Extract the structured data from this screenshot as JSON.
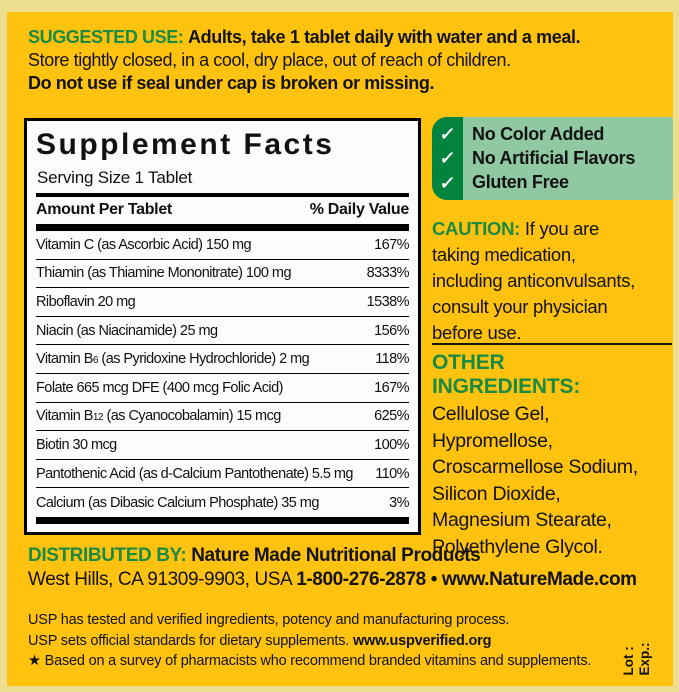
{
  "colors": {
    "background_yellow": "#FFC20E",
    "frame_pale_yellow": "#EDDE8F",
    "heading_green": "#1B8A43",
    "badge_dark_green": "#00833E",
    "badge_light_green": "#90C8A2",
    "text_black": "#131313",
    "panel_white": "#FCFCFA"
  },
  "suggested_use": {
    "label": "SUGGESTED USE:",
    "line1_rest": "Adults, take 1 tablet daily with water and a meal.",
    "line2": "Store tightly closed, in a cool, dry place, out of reach of children.",
    "line3": "Do not use if seal under cap is broken or missing."
  },
  "supplement_facts": {
    "title": "Supplement Facts",
    "serving_size": "Serving Size 1 Tablet",
    "col_left": "Amount Per Tablet",
    "col_right": "% Daily Value",
    "rows": [
      {
        "name": "Vitamin C (as Ascorbic Acid)  150 mg",
        "dv": "167%"
      },
      {
        "name": "Thiamin (as Thiamine Mononitrate)  100 mg",
        "dv": "8333%"
      },
      {
        "name": "Riboflavin  20 mg",
        "dv": "1538%"
      },
      {
        "name": "Niacin (as Niacinamide)  25 mg",
        "dv": "156%"
      },
      {
        "name": "Vitamin B6 (as Pyridoxine Hydrochloride)  2 mg",
        "dv": "118%"
      },
      {
        "name": "Folate  665 mcg DFE (400 mcg Folic Acid)",
        "dv": "167%"
      },
      {
        "name": "Vitamin B12 (as Cyanocobalamin)  15 mcg",
        "dv": "625%"
      },
      {
        "name": "Biotin  30 mcg",
        "dv": "100%"
      },
      {
        "name": "Pantothenic Acid (as d-Calcium Pantothenate)  5.5 mg",
        "dv": "110%"
      },
      {
        "name": "Calcium (as Dibasic Calcium Phosphate) 35 mg",
        "dv": "3%"
      }
    ]
  },
  "badges": {
    "check_glyph": "✓",
    "items": [
      "No Color Added",
      "No Artificial Flavors",
      "Gluten Free"
    ]
  },
  "caution": {
    "label": "CAUTION:",
    "text": " If you are\ntaking medication,\nincluding anticonvulsants,\nconsult your physician\nbefore use."
  },
  "other_ingredients": {
    "label": "OTHER INGREDIENTS:",
    "items": [
      "Cellulose Gel,",
      "Hypromellose,",
      "Croscarmellose Sodium,",
      "Silicon Dioxide,",
      "Magnesium Stearate,",
      "Polyethylene Glycol."
    ]
  },
  "distributed_by": {
    "label": "DISTRIBUTED BY:",
    "company": "Nature Made Nutritional Products",
    "address": "West Hills, CA 91309-9903, USA",
    "phone": "1-800-276-2878",
    "separator": "•",
    "website": "www.NatureMade.com"
  },
  "usp": {
    "line1": "USP has tested and verified ingredients, potency and manufacturing process.",
    "line2_pre": "USP sets official standards for dietary supplements. ",
    "line2_url": "www.uspverified.org",
    "line3_star": "★",
    "line3": " Based on a survey of pharmacists who recommend branded vitamins and supplements."
  },
  "lot_exp": {
    "lot": "Lot :",
    "exp": "Exp.:"
  }
}
